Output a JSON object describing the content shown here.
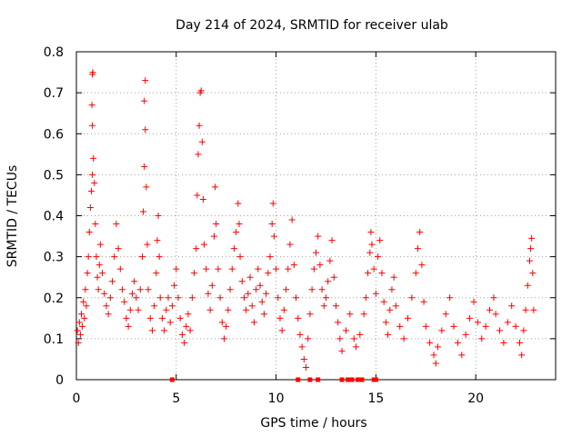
{
  "chart_data": {
    "type": "scatter",
    "title": "Day 214 of 2024, SRMTID for receiver ulab",
    "xlabel": "GPS time / hours",
    "ylabel": "SRMTID / TECUs",
    "xlim": [
      0,
      24
    ],
    "ylim": [
      0,
      0.8
    ],
    "xticks": [
      0,
      5,
      10,
      15,
      20
    ],
    "yticks": [
      0,
      0.1,
      0.2,
      0.3,
      0.4,
      0.5,
      0.6,
      0.7,
      0.8
    ],
    "xtick_labels": [
      "0",
      "5",
      "10",
      "15",
      "20"
    ],
    "ytick_labels": [
      "0",
      "0.1",
      "0.2",
      "0.3",
      "0.4",
      "0.5",
      "0.6",
      "0.7",
      "0.8"
    ],
    "grid": true,
    "marker": "+",
    "color": "#ff0000",
    "series": [
      {
        "name": "SRMTID",
        "points": [
          [
            0.05,
            0.12
          ],
          [
            0.1,
            0.09
          ],
          [
            0.15,
            0.14
          ],
          [
            0.2,
            0.11
          ],
          [
            0.25,
            0.16
          ],
          [
            0.3,
            0.13
          ],
          [
            0.35,
            0.19
          ],
          [
            0.4,
            0.15
          ],
          [
            0.45,
            0.22
          ],
          [
            0.5,
            0.18
          ],
          [
            0.55,
            0.26
          ],
          [
            0.6,
            0.3
          ],
          [
            0.65,
            0.36
          ],
          [
            0.7,
            0.42
          ],
          [
            0.75,
            0.46
          ],
          [
            0.8,
            0.5
          ],
          [
            0.85,
            0.54
          ],
          [
            0.8,
            0.62
          ],
          [
            0.78,
            0.67
          ],
          [
            0.8,
            0.745
          ],
          [
            0.82,
            0.75
          ],
          [
            0.9,
            0.48
          ],
          [
            0.95,
            0.38
          ],
          [
            1.0,
            0.3
          ],
          [
            1.05,
            0.25
          ],
          [
            1.1,
            0.22
          ],
          [
            1.15,
            0.28
          ],
          [
            1.2,
            0.33
          ],
          [
            1.3,
            0.26
          ],
          [
            1.4,
            0.21
          ],
          [
            1.5,
            0.18
          ],
          [
            1.6,
            0.16
          ],
          [
            1.7,
            0.2
          ],
          [
            1.8,
            0.24
          ],
          [
            1.9,
            0.3
          ],
          [
            2.0,
            0.38
          ],
          [
            2.1,
            0.32
          ],
          [
            2.2,
            0.27
          ],
          [
            2.3,
            0.22
          ],
          [
            2.4,
            0.19
          ],
          [
            2.5,
            0.15
          ],
          [
            2.6,
            0.13
          ],
          [
            2.7,
            0.17
          ],
          [
            2.8,
            0.21
          ],
          [
            2.9,
            0.24
          ],
          [
            3.0,
            0.2
          ],
          [
            3.1,
            0.17
          ],
          [
            3.2,
            0.22
          ],
          [
            3.3,
            0.3
          ],
          [
            3.35,
            0.41
          ],
          [
            3.4,
            0.52
          ],
          [
            3.45,
            0.61
          ],
          [
            3.4,
            0.68
          ],
          [
            3.45,
            0.73
          ],
          [
            3.5,
            0.47
          ],
          [
            3.55,
            0.33
          ],
          [
            3.6,
            0.22
          ],
          [
            3.7,
            0.15
          ],
          [
            3.8,
            0.12
          ],
          [
            3.9,
            0.18
          ],
          [
            4.0,
            0.26
          ],
          [
            4.05,
            0.34
          ],
          [
            4.1,
            0.4
          ],
          [
            4.15,
            0.3
          ],
          [
            4.2,
            0.2
          ],
          [
            4.3,
            0.15
          ],
          [
            4.4,
            0.12
          ],
          [
            4.5,
            0.17
          ],
          [
            4.6,
            0.2
          ],
          [
            4.7,
            0.14
          ],
          [
            4.8,
            0.18
          ],
          [
            4.9,
            0.23
          ],
          [
            5.0,
            0.27
          ],
          [
            5.1,
            0.2
          ],
          [
            5.2,
            0.15
          ],
          [
            5.3,
            0.11
          ],
          [
            5.4,
            0.09
          ],
          [
            5.5,
            0.13
          ],
          [
            5.6,
            0.16
          ],
          [
            5.7,
            0.12
          ],
          [
            5.8,
            0.2
          ],
          [
            5.9,
            0.26
          ],
          [
            6.0,
            0.32
          ],
          [
            6.05,
            0.45
          ],
          [
            6.1,
            0.55
          ],
          [
            6.15,
            0.62
          ],
          [
            6.2,
            0.7
          ],
          [
            6.25,
            0.705
          ],
          [
            6.3,
            0.58
          ],
          [
            6.35,
            0.44
          ],
          [
            6.4,
            0.33
          ],
          [
            6.5,
            0.27
          ],
          [
            6.6,
            0.21
          ],
          [
            6.7,
            0.17
          ],
          [
            6.8,
            0.23
          ],
          [
            6.9,
            0.35
          ],
          [
            6.95,
            0.47
          ],
          [
            7.0,
            0.38
          ],
          [
            7.1,
            0.27
          ],
          [
            7.2,
            0.2
          ],
          [
            7.3,
            0.14
          ],
          [
            7.4,
            0.1
          ],
          [
            7.5,
            0.13
          ],
          [
            7.6,
            0.17
          ],
          [
            7.7,
            0.22
          ],
          [
            7.8,
            0.27
          ],
          [
            7.9,
            0.32
          ],
          [
            8.0,
            0.36
          ],
          [
            8.1,
            0.43
          ],
          [
            8.15,
            0.38
          ],
          [
            8.2,
            0.3
          ],
          [
            8.3,
            0.24
          ],
          [
            8.4,
            0.2
          ],
          [
            8.5,
            0.17
          ],
          [
            8.6,
            0.21
          ],
          [
            8.7,
            0.25
          ],
          [
            8.8,
            0.18
          ],
          [
            8.9,
            0.14
          ],
          [
            9.0,
            0.22
          ],
          [
            9.1,
            0.27
          ],
          [
            9.2,
            0.23
          ],
          [
            9.3,
            0.19
          ],
          [
            9.4,
            0.16
          ],
          [
            9.5,
            0.21
          ],
          [
            9.6,
            0.26
          ],
          [
            9.7,
            0.3
          ],
          [
            9.8,
            0.38
          ],
          [
            9.85,
            0.43
          ],
          [
            9.9,
            0.35
          ],
          [
            10.0,
            0.27
          ],
          [
            10.1,
            0.2
          ],
          [
            10.2,
            0.15
          ],
          [
            10.3,
            0.12
          ],
          [
            10.4,
            0.17
          ],
          [
            10.5,
            0.22
          ],
          [
            10.6,
            0.27
          ],
          [
            10.7,
            0.33
          ],
          [
            10.8,
            0.39
          ],
          [
            10.9,
            0.28
          ],
          [
            11.0,
            0.2
          ],
          [
            11.1,
            0.15
          ],
          [
            11.2,
            0.11
          ],
          [
            11.3,
            0.08
          ],
          [
            11.4,
            0.05
          ],
          [
            11.5,
            0.03
          ],
          [
            11.6,
            0.1
          ],
          [
            11.7,
            0.16
          ],
          [
            11.8,
            0.22
          ],
          [
            11.9,
            0.27
          ],
          [
            12.0,
            0.31
          ],
          [
            12.1,
            0.35
          ],
          [
            12.2,
            0.28
          ],
          [
            12.3,
            0.22
          ],
          [
            12.4,
            0.18
          ],
          [
            12.5,
            0.2
          ],
          [
            12.6,
            0.24
          ],
          [
            12.7,
            0.29
          ],
          [
            12.8,
            0.34
          ],
          [
            12.9,
            0.25
          ],
          [
            13.0,
            0.18
          ],
          [
            13.1,
            0.14
          ],
          [
            13.2,
            0.1
          ],
          [
            13.3,
            0.07
          ],
          [
            13.5,
            0.12
          ],
          [
            13.7,
            0.16
          ],
          [
            13.9,
            0.1
          ],
          [
            14.0,
            0.08
          ],
          [
            14.2,
            0.11
          ],
          [
            14.4,
            0.16
          ],
          [
            14.5,
            0.2
          ],
          [
            14.6,
            0.26
          ],
          [
            14.7,
            0.31
          ],
          [
            14.75,
            0.36
          ],
          [
            14.8,
            0.33
          ],
          [
            14.9,
            0.27
          ],
          [
            15.0,
            0.21
          ],
          [
            15.1,
            0.3
          ],
          [
            15.2,
            0.34
          ],
          [
            15.3,
            0.26
          ],
          [
            15.4,
            0.19
          ],
          [
            15.5,
            0.14
          ],
          [
            15.6,
            0.11
          ],
          [
            15.7,
            0.17
          ],
          [
            15.8,
            0.22
          ],
          [
            15.9,
            0.25
          ],
          [
            16.0,
            0.18
          ],
          [
            16.2,
            0.13
          ],
          [
            16.4,
            0.1
          ],
          [
            16.6,
            0.15
          ],
          [
            16.8,
            0.2
          ],
          [
            17.0,
            0.26
          ],
          [
            17.1,
            0.32
          ],
          [
            17.2,
            0.36
          ],
          [
            17.3,
            0.28
          ],
          [
            17.4,
            0.19
          ],
          [
            17.5,
            0.13
          ],
          [
            17.7,
            0.09
          ],
          [
            17.9,
            0.06
          ],
          [
            18.0,
            0.04
          ],
          [
            18.1,
            0.08
          ],
          [
            18.3,
            0.12
          ],
          [
            18.5,
            0.16
          ],
          [
            18.7,
            0.2
          ],
          [
            18.9,
            0.13
          ],
          [
            19.1,
            0.09
          ],
          [
            19.3,
            0.06
          ],
          [
            19.5,
            0.11
          ],
          [
            19.7,
            0.15
          ],
          [
            19.9,
            0.19
          ],
          [
            20.1,
            0.14
          ],
          [
            20.3,
            0.1
          ],
          [
            20.5,
            0.13
          ],
          [
            20.7,
            0.17
          ],
          [
            20.9,
            0.2
          ],
          [
            21.0,
            0.16
          ],
          [
            21.2,
            0.12
          ],
          [
            21.4,
            0.09
          ],
          [
            21.6,
            0.14
          ],
          [
            21.8,
            0.18
          ],
          [
            22.0,
            0.13
          ],
          [
            22.2,
            0.09
          ],
          [
            22.3,
            0.06
          ],
          [
            22.4,
            0.12
          ],
          [
            22.5,
            0.17
          ],
          [
            22.6,
            0.23
          ],
          [
            22.7,
            0.29
          ],
          [
            22.75,
            0.32
          ],
          [
            22.8,
            0.345
          ],
          [
            22.85,
            0.26
          ],
          [
            22.9,
            0.17
          ]
        ]
      }
    ],
    "zero_points": [
      4.8,
      11.1,
      11.7,
      12.1,
      13.3,
      13.6,
      13.8,
      14.1,
      14.3,
      14.9,
      15.0
    ]
  }
}
